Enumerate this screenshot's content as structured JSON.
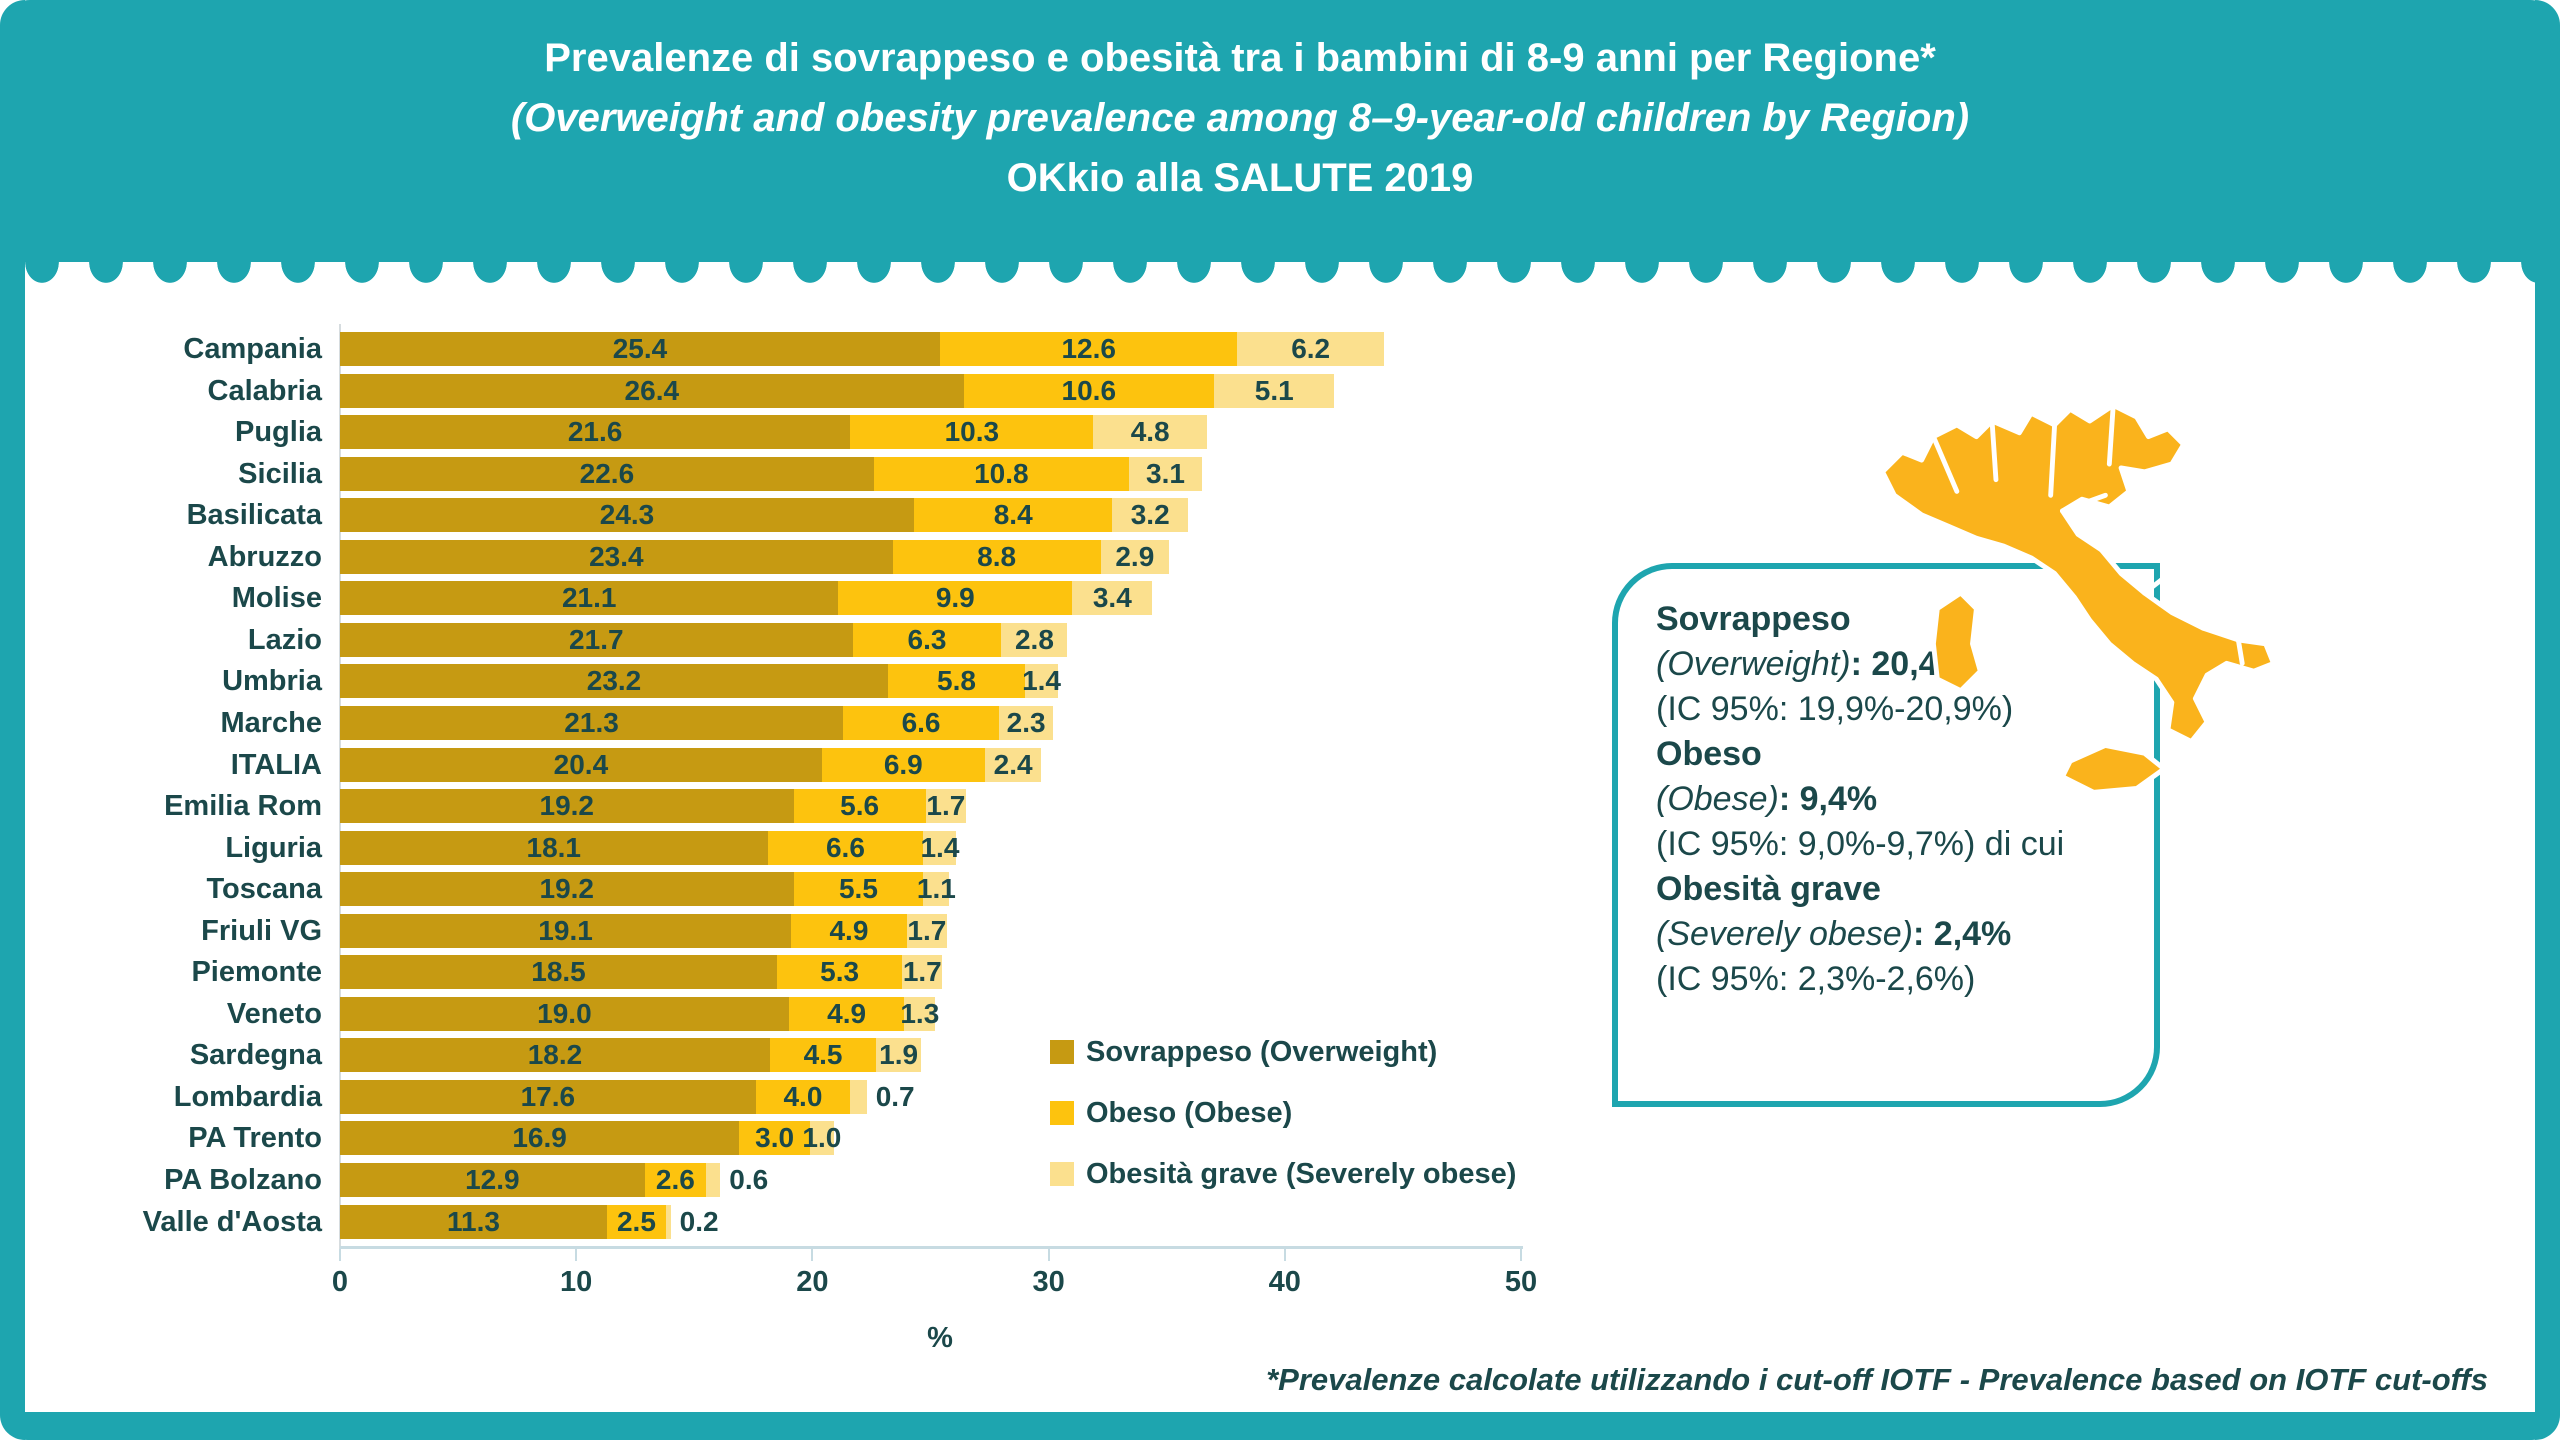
{
  "header": {
    "title_line1": "Prevalenze di sovrappeso e obesità tra i bambini di 8-9 anni per Regione*",
    "title_line2": "(Overweight and obesity prevalence among 8–9-year-old children by Region)",
    "title_line3": "OKkio alla SALUTE 2019"
  },
  "colors": {
    "teal": "#1EA5AF",
    "dark_text": "#1B484A",
    "overweight": "#C69A12",
    "obese": "#FDC30E",
    "severely_obese": "#FBE08E",
    "map_fill": "#FAB31C",
    "axis_line": "#C7DBE2"
  },
  "chart_data": {
    "type": "bar",
    "orientation": "horizontal",
    "stacked": true,
    "categories": [
      "Campania",
      "Calabria",
      "Puglia",
      "Sicilia",
      "Basilicata",
      "Abruzzo",
      "Molise",
      "Lazio",
      "Umbria",
      "Marche",
      "ITALIA",
      "Emilia Rom",
      "Liguria",
      "Toscana",
      "Friuli VG",
      "Piemonte",
      "Veneto",
      "Sardegna",
      "Lombardia",
      "PA Trento",
      "PA Bolzano",
      "Valle d'Aosta"
    ],
    "series": [
      {
        "name": "Sovrappeso (Overweight)",
        "key": "overweight",
        "color_key": "overweight",
        "values": [
          25.4,
          26.4,
          21.6,
          22.6,
          24.3,
          23.4,
          21.1,
          21.7,
          23.2,
          21.3,
          20.4,
          19.2,
          18.1,
          19.2,
          19.1,
          18.5,
          19.0,
          18.2,
          17.6,
          16.9,
          12.9,
          11.3
        ]
      },
      {
        "name": "Obeso (Obese)",
        "key": "obese",
        "color_key": "obese",
        "values": [
          12.6,
          10.6,
          10.3,
          10.8,
          8.4,
          8.8,
          9.9,
          6.3,
          5.8,
          6.6,
          6.9,
          5.6,
          6.6,
          5.5,
          4.9,
          5.3,
          4.9,
          4.5,
          4.0,
          3.0,
          2.6,
          2.5
        ]
      },
      {
        "name": "Obesità grave (Severely obese)",
        "key": "severe",
        "color_key": "severely_obese",
        "values": [
          6.2,
          5.1,
          4.8,
          3.1,
          3.2,
          2.9,
          3.4,
          2.8,
          1.4,
          2.3,
          2.4,
          1.7,
          1.4,
          1.1,
          1.7,
          1.7,
          1.3,
          1.9,
          0.7,
          1.0,
          0.6,
          0.2
        ]
      }
    ],
    "xlabel": "%",
    "x_ticks": [
      0,
      10,
      20,
      30,
      40,
      50
    ],
    "xlim": [
      0,
      50
    ],
    "grid": false,
    "legend_position": "inside-right"
  },
  "side_panel": {
    "lines": [
      [
        {
          "t": "Sovrappeso",
          "b": true
        }
      ],
      [
        {
          "t": "(Overweight)",
          "i": true
        },
        {
          "t": ": 20,4%",
          "b": true
        }
      ],
      [
        {
          "t": "(IC 95%: 19,9%-20,9%)"
        }
      ],
      [
        {
          "t": "Obeso",
          "b": true
        }
      ],
      [
        {
          "t": "(Obese)",
          "i": true
        },
        {
          "t": ": 9,4%",
          "b": true
        }
      ],
      [
        {
          "t": "(IC 95%: 9,0%-9,7%) di cui"
        }
      ],
      [
        {
          "t": "Obesità grave",
          "b": true
        }
      ],
      [
        {
          "t": "(Severely obese)",
          "i": true
        },
        {
          "t": ": 2,4%",
          "b": true
        }
      ],
      [
        {
          "t": "(IC 95%: 2,3%-2,6%)"
        }
      ]
    ]
  },
  "footnote": "*Prevalenze calcolate utilizzando i cut-off IOTF - Prevalence based on IOTF cut-offs"
}
